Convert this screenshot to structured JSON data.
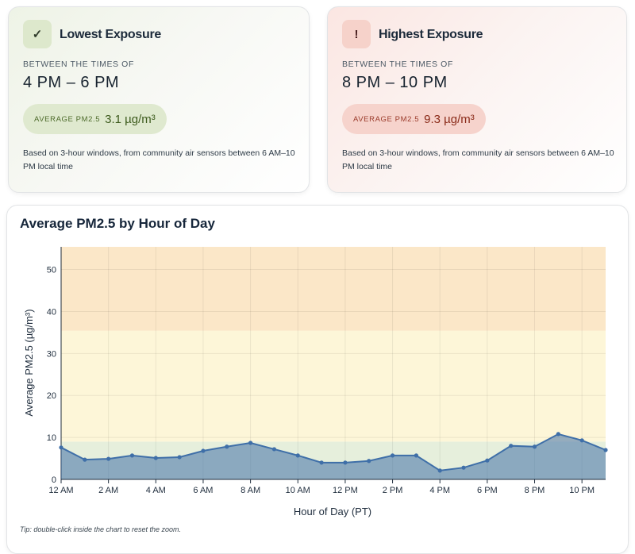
{
  "cards": [
    {
      "icon": "✓",
      "title": "Lowest Exposure",
      "between": "BETWEEN THE TIMES OF",
      "range": "4 PM – 6 PM",
      "metric_label": "AVERAGE PM2.5",
      "metric_value": "3.1 µg/m³",
      "note": "Based on 3-hour windows, from community air sensors between 6 AM–10 PM local time"
    },
    {
      "icon": "!",
      "title": "Highest Exposure",
      "between": "BETWEEN THE TIMES OF",
      "range": "8 PM – 10 PM",
      "metric_label": "AVERAGE PM2.5",
      "metric_value": "9.3 µg/m³",
      "note": "Based on 3-hour windows, from community air sensors between 6 AM–10 PM local time"
    }
  ],
  "chart_data": {
    "type": "area",
    "title": "Average PM2.5 by Hour of Day",
    "x_label": "Hour of Day (PT)",
    "y_label": "Average PM2.5 (µg/m³)",
    "x": [
      0,
      1,
      2,
      3,
      4,
      5,
      6,
      7,
      8,
      9,
      10,
      11,
      12,
      13,
      14,
      15,
      16,
      17,
      18,
      19,
      20,
      21,
      22,
      23
    ],
    "series": [
      {
        "name": "Average PM2.5",
        "color": "#3f6fa8",
        "values": [
          7.6,
          4.7,
          4.9,
          5.7,
          5.1,
          5.3,
          6.8,
          7.8,
          8.7,
          7.2,
          5.7,
          4.0,
          4.0,
          4.4,
          5.7,
          5.7,
          2.1,
          2.8,
          4.5,
          8.0,
          7.8,
          10.8,
          9.3,
          7.0
        ]
      }
    ],
    "xlim": [
      0,
      23
    ],
    "xticks": [
      {
        "value": 0,
        "label": "12 AM"
      },
      {
        "value": 2,
        "label": "2 AM"
      },
      {
        "value": 4,
        "label": "4 AM"
      },
      {
        "value": 6,
        "label": "6 AM"
      },
      {
        "value": 8,
        "label": "8 AM"
      },
      {
        "value": 10,
        "label": "10 AM"
      },
      {
        "value": 12,
        "label": "12 PM"
      },
      {
        "value": 14,
        "label": "2 PM"
      },
      {
        "value": 16,
        "label": "4 PM"
      },
      {
        "value": 18,
        "label": "6 PM"
      },
      {
        "value": 20,
        "label": "8 PM"
      },
      {
        "value": 22,
        "label": "10 PM"
      }
    ],
    "ylim": [
      0,
      55.4
    ],
    "yticks": [
      0,
      10,
      20,
      30,
      40,
      50
    ],
    "grid": true,
    "bands": [
      {
        "from": 0,
        "to": 9,
        "color": "#e6efdc"
      },
      {
        "from": 9,
        "to": 35.4,
        "color": "#fdf6d8"
      },
      {
        "from": 35.4,
        "to": 55.4,
        "color": "#fbe7c8"
      }
    ],
    "tip": "Tip: double-click inside the chart to reset the zoom."
  }
}
